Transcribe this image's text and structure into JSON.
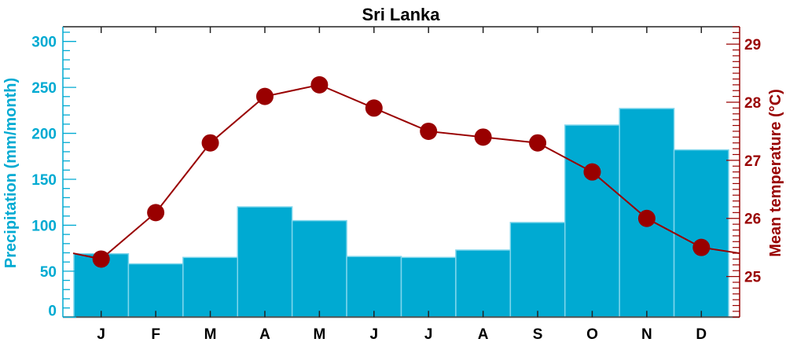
{
  "chart_data": {
    "type": "bar+line",
    "title": "Sri Lanka",
    "categories": [
      "J",
      "F",
      "M",
      "A",
      "M",
      "J",
      "J",
      "A",
      "S",
      "O",
      "N",
      "D"
    ],
    "series": [
      {
        "name": "Precipitation (mm/month)",
        "type": "bar",
        "axis": "left",
        "values": [
          69,
          58,
          65,
          120,
          105,
          66,
          65,
          73,
          103,
          209,
          227,
          182
        ]
      },
      {
        "name": "Mean temperature (°C)",
        "type": "line",
        "axis": "right",
        "values": [
          25.3,
          26.1,
          27.3,
          28.1,
          28.3,
          27.9,
          27.5,
          27.4,
          27.3,
          26.8,
          26.0,
          25.5
        ]
      }
    ],
    "ylabel_left": "Precipitation (mm/month)",
    "ylabel_right": "Mean temperature (°C)",
    "ylim_left": [
      0,
      316
    ],
    "ylim_right": [
      24.3,
      29.3
    ],
    "yticks_left": [
      "0",
      "50",
      "100",
      "150",
      "200",
      "250",
      "300"
    ],
    "yticks_right": [
      "25",
      "26",
      "27",
      "28",
      "29"
    ],
    "grid": false,
    "colors": {
      "bar": "#00aad2",
      "bar_edge": "#7fd6ec",
      "line": "#990000",
      "left_axis": "#00aad2",
      "right_axis": "#990000",
      "text": "#000000"
    }
  }
}
